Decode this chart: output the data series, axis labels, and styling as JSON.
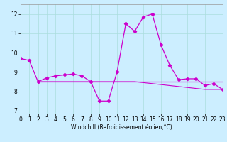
{
  "title": "",
  "xlabel": "Windchill (Refroidissement éolien,°C)",
  "bg_color": "#cceeff",
  "grid_color": "#aadddd",
  "line_color": "#cc00cc",
  "x": [
    0,
    1,
    2,
    3,
    4,
    5,
    6,
    7,
    8,
    9,
    10,
    11,
    12,
    13,
    14,
    15,
    16,
    17,
    18,
    19,
    20,
    21,
    22,
    23
  ],
  "line_main": [
    9.7,
    9.6,
    8.5,
    8.7,
    8.8,
    8.85,
    8.9,
    8.8,
    8.5,
    7.5,
    7.5,
    9.0,
    11.5,
    11.1,
    11.85,
    12.0,
    10.4,
    9.35,
    8.6,
    8.65,
    8.65,
    8.3,
    8.4,
    8.1
  ],
  "line_flat1": [
    null,
    null,
    8.5,
    8.5,
    8.5,
    8.5,
    8.5,
    8.5,
    8.5,
    8.5,
    8.5,
    8.5,
    8.5,
    8.5,
    8.5,
    8.5,
    8.5,
    8.5,
    8.5,
    8.5,
    8.5,
    8.5,
    8.5,
    8.5
  ],
  "line_flat2": [
    null,
    null,
    8.5,
    8.5,
    8.5,
    8.5,
    8.5,
    8.5,
    8.5,
    8.5,
    8.5,
    8.5,
    8.5,
    8.5,
    8.5,
    8.5,
    8.5,
    8.5,
    8.5,
    8.5,
    8.5,
    8.5,
    8.5,
    8.5
  ],
  "line_decline": [
    null,
    null,
    8.5,
    8.5,
    8.5,
    8.5,
    8.5,
    8.5,
    8.5,
    8.5,
    8.5,
    8.5,
    8.5,
    8.5,
    8.45,
    8.4,
    8.35,
    8.3,
    8.25,
    8.2,
    8.15,
    8.1,
    8.1,
    8.1
  ],
  "ylim": [
    6.85,
    12.5
  ],
  "xlim": [
    0,
    23
  ],
  "yticks": [
    7,
    8,
    9,
    10,
    11,
    12
  ],
  "xticks": [
    0,
    1,
    2,
    3,
    4,
    5,
    6,
    7,
    8,
    9,
    10,
    11,
    12,
    13,
    14,
    15,
    16,
    17,
    18,
    19,
    20,
    21,
    22,
    23
  ],
  "xlabel_fontsize": 5.5,
  "tick_fontsize": 5.5
}
